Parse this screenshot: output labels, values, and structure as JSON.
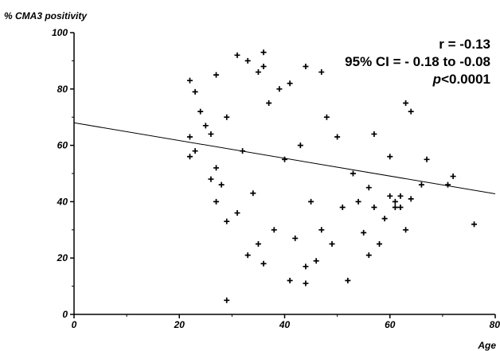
{
  "chart_data": {
    "type": "scatter",
    "title": "",
    "xlabel": "Age",
    "ylabel": "% CMA3 positivity",
    "xlim": [
      0,
      80
    ],
    "ylim": [
      0,
      100
    ],
    "x_ticks": [
      "0",
      "20",
      "40",
      "60",
      "80"
    ],
    "y_ticks": [
      "0",
      "20",
      "40",
      "60",
      "80",
      "100"
    ],
    "grid": false,
    "marker": "+",
    "annotations": {
      "r": "r = -0.13",
      "ci": "95% CI = - 0.18 to -0.08",
      "p_italic": "p",
      "p_rest": "<0.0001"
    },
    "regression_line": {
      "intercept": 68,
      "slope": -0.315
    },
    "series": [
      {
        "points": [
          [
            22,
            83
          ],
          [
            22,
            63
          ],
          [
            22,
            56
          ],
          [
            23,
            79
          ],
          [
            23,
            58
          ],
          [
            24,
            72
          ],
          [
            25,
            67
          ],
          [
            26,
            48
          ],
          [
            26,
            64
          ],
          [
            27,
            85
          ],
          [
            27,
            40
          ],
          [
            27,
            52
          ],
          [
            28,
            46
          ],
          [
            29,
            5
          ],
          [
            29,
            70
          ],
          [
            29,
            33
          ],
          [
            31,
            92
          ],
          [
            31,
            36
          ],
          [
            32,
            58
          ],
          [
            33,
            90
          ],
          [
            33,
            21
          ],
          [
            34,
            43
          ],
          [
            35,
            86
          ],
          [
            35,
            25
          ],
          [
            36,
            93
          ],
          [
            36,
            88
          ],
          [
            36,
            18
          ],
          [
            37,
            75
          ],
          [
            38,
            30
          ],
          [
            39,
            80
          ],
          [
            40,
            55
          ],
          [
            41,
            82
          ],
          [
            41,
            12
          ],
          [
            42,
            27
          ],
          [
            43,
            60
          ],
          [
            44,
            88
          ],
          [
            44,
            17
          ],
          [
            44,
            11
          ],
          [
            45,
            40
          ],
          [
            46,
            19
          ],
          [
            47,
            86
          ],
          [
            47,
            30
          ],
          [
            48,
            70
          ],
          [
            49,
            25
          ],
          [
            50,
            63
          ],
          [
            51,
            38
          ],
          [
            52,
            12
          ],
          [
            53,
            50
          ],
          [
            54,
            40
          ],
          [
            55,
            29
          ],
          [
            56,
            45
          ],
          [
            56,
            21
          ],
          [
            57,
            64
          ],
          [
            57,
            38
          ],
          [
            58,
            25
          ],
          [
            59,
            34
          ],
          [
            60,
            56
          ],
          [
            60,
            42
          ],
          [
            61,
            40
          ],
          [
            61,
            38
          ],
          [
            62,
            42
          ],
          [
            62,
            38
          ],
          [
            63,
            75
          ],
          [
            63,
            30
          ],
          [
            64,
            41
          ],
          [
            64,
            72
          ],
          [
            66,
            46
          ],
          [
            67,
            55
          ],
          [
            71,
            46
          ],
          [
            72,
            49
          ],
          [
            76,
            32
          ]
        ]
      }
    ]
  }
}
